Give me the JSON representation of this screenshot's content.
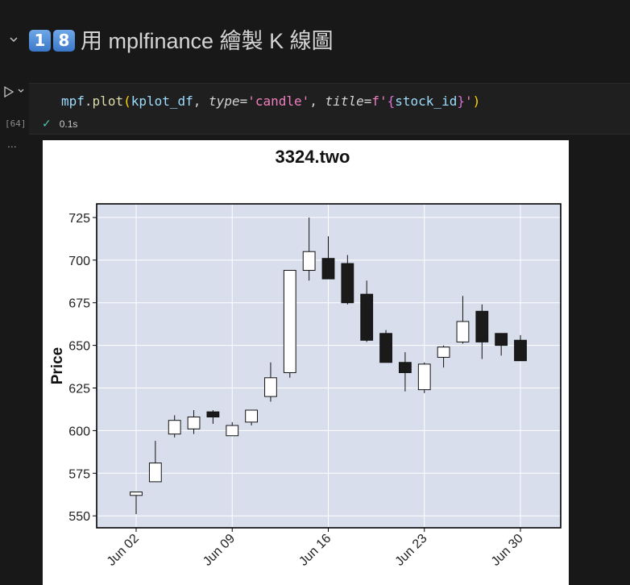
{
  "section": {
    "emoji_1": "1",
    "emoji_2": "8",
    "title": "用 mplfinance 繪製 K 線圖"
  },
  "cell": {
    "exec_count": "[64]",
    "code": {
      "module": "mpf",
      "dot": ".",
      "fn": "plot",
      "open_paren": "(",
      "arg": "kplot_df",
      "sep1": ", ",
      "param1": "type",
      "eq1": "=",
      "val1": "'candle'",
      "sep2": ", ",
      "param2": "title",
      "eq2": "=",
      "fprefix": "f'",
      "fopen": "{",
      "fvar": "stock_id",
      "fclose": "}",
      "fend": "'",
      "close_paren": ")"
    },
    "status": {
      "duration": "0.1s"
    },
    "output_menu": "..."
  },
  "chart_data": {
    "type": "candlestick",
    "title": "3324.two",
    "ylabel": "Price",
    "xlabel": "",
    "ylim": [
      543,
      733
    ],
    "yticks": [
      550,
      575,
      600,
      625,
      650,
      675,
      700,
      725
    ],
    "xticks": [
      {
        "label": "Jun 02",
        "index": 0
      },
      {
        "label": "Jun 09",
        "index": 5
      },
      {
        "label": "Jun 16",
        "index": 10
      },
      {
        "label": "Jun 23",
        "index": 15
      },
      {
        "label": "Jun 30",
        "index": 20
      }
    ],
    "grid": true,
    "background": "#d9deec",
    "up_color": "#ffffff",
    "down_color": "#1a1a1a",
    "candles": [
      {
        "date": "Jun 02",
        "open": 562,
        "high": 564,
        "low": 551,
        "close": 564
      },
      {
        "date": "Jun 03",
        "open": 570,
        "high": 594,
        "low": 570,
        "close": 581
      },
      {
        "date": "Jun 04",
        "open": 598,
        "high": 609,
        "low": 596,
        "close": 606
      },
      {
        "date": "Jun 05",
        "open": 601,
        "high": 612,
        "low": 598,
        "close": 608
      },
      {
        "date": "Jun 06",
        "open": 611,
        "high": 612,
        "low": 604,
        "close": 608
      },
      {
        "date": "Jun 09",
        "open": 597,
        "high": 605,
        "low": 597,
        "close": 603
      },
      {
        "date": "Jun 10",
        "open": 605,
        "high": 612,
        "low": 603,
        "close": 612
      },
      {
        "date": "Jun 11",
        "open": 620,
        "high": 640,
        "low": 617,
        "close": 631
      },
      {
        "date": "Jun 12",
        "open": 634,
        "high": 694,
        "low": 631,
        "close": 694
      },
      {
        "date": "Jun 13",
        "open": 694,
        "high": 725,
        "low": 688,
        "close": 705
      },
      {
        "date": "Jun 16",
        "open": 701,
        "high": 714,
        "low": 689,
        "close": 689
      },
      {
        "date": "Jun 17",
        "open": 698,
        "high": 703,
        "low": 674,
        "close": 675
      },
      {
        "date": "Jun 18",
        "open": 680,
        "high": 688,
        "low": 652,
        "close": 653
      },
      {
        "date": "Jun 19",
        "open": 657,
        "high": 659,
        "low": 640,
        "close": 640
      },
      {
        "date": "Jun 20",
        "open": 640,
        "high": 646,
        "low": 623,
        "close": 634
      },
      {
        "date": "Jun 23",
        "open": 624,
        "high": 640,
        "low": 622,
        "close": 639
      },
      {
        "date": "Jun 24",
        "open": 643,
        "high": 650,
        "low": 637,
        "close": 649
      },
      {
        "date": "Jun 25",
        "open": 652,
        "high": 679,
        "low": 651,
        "close": 664
      },
      {
        "date": "Jun 26",
        "open": 670,
        "high": 674,
        "low": 642,
        "close": 652
      },
      {
        "date": "Jun 27",
        "open": 657,
        "high": 657,
        "low": 644,
        "close": 650
      },
      {
        "date": "Jun 30",
        "open": 653,
        "high": 656,
        "low": 641,
        "close": 641
      }
    ]
  }
}
